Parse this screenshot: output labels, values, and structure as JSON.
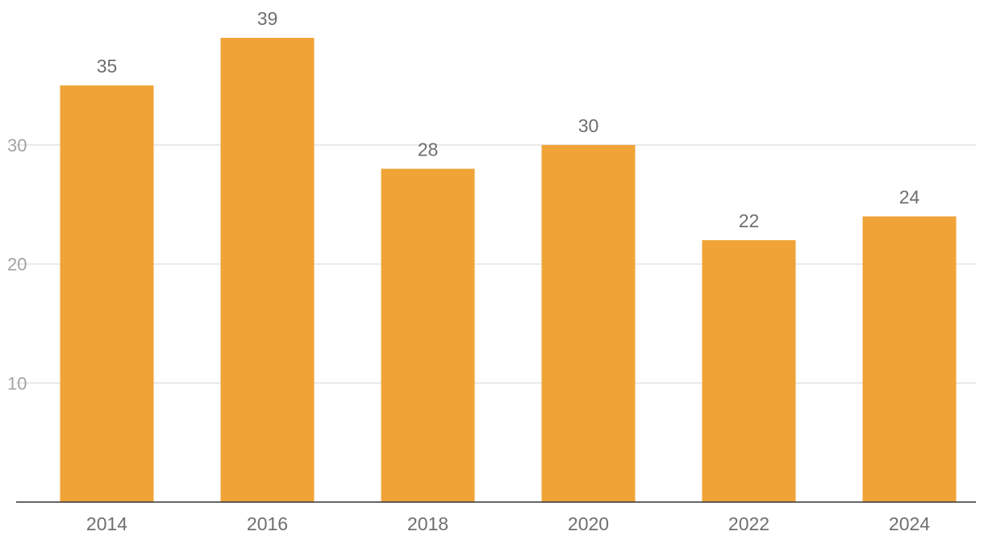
{
  "chart_data": {
    "type": "bar",
    "categories": [
      "2014",
      "2016",
      "2018",
      "2020",
      "2022",
      "2024"
    ],
    "values": [
      35,
      39,
      28,
      30,
      22,
      24
    ],
    "yticks": [
      10,
      20,
      30
    ],
    "ylim": [
      0,
      40
    ],
    "grid": true,
    "colors": {
      "bar": "#F0A336"
    }
  }
}
